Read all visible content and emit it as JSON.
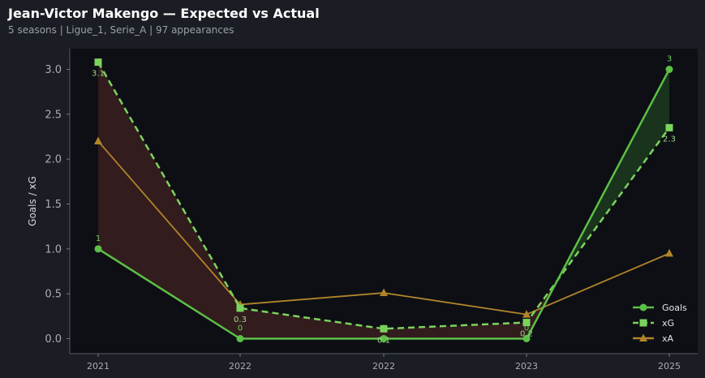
{
  "header": {
    "title": "Jean-Victor Makengo — Expected vs Actual",
    "subtitle": "5 seasons | Ligue_1, Serie_A | 97 appearances"
  },
  "chart_data": {
    "type": "line",
    "categories": [
      "2021",
      "2022",
      "2022",
      "2023",
      "2025"
    ],
    "ylabel": "Goals / xG",
    "ylim": [
      -0.15,
      3.25
    ],
    "yticks": [
      "0.0",
      "0.5",
      "1.0",
      "1.5",
      "2.0",
      "2.5",
      "3.0"
    ],
    "series": [
      {
        "name": "Goals",
        "values": [
          1,
          0,
          0,
          0,
          3
        ],
        "labels": [
          "1",
          "0",
          "0",
          "0",
          "3"
        ],
        "color": "#5cbf46",
        "style": "solid",
        "marker": "circle"
      },
      {
        "name": "xG",
        "values": [
          3.08,
          0.34,
          0.11,
          0.18,
          2.35
        ],
        "labels": [
          "3.1",
          "0.3",
          "0.1",
          "0.2",
          "2.3"
        ],
        "color": "#7bd35e",
        "style": "dashed",
        "marker": "square"
      },
      {
        "name": "xA",
        "values": [
          2.2,
          0.38,
          0.51,
          0.27,
          0.95
        ],
        "color": "#b0842a",
        "style": "solid",
        "marker": "triangle"
      }
    ],
    "fill_under": "#3a1f1f",
    "fill_over": "#1c3a1f",
    "legend_position": "bottom-right",
    "background": "#0d0f14"
  }
}
